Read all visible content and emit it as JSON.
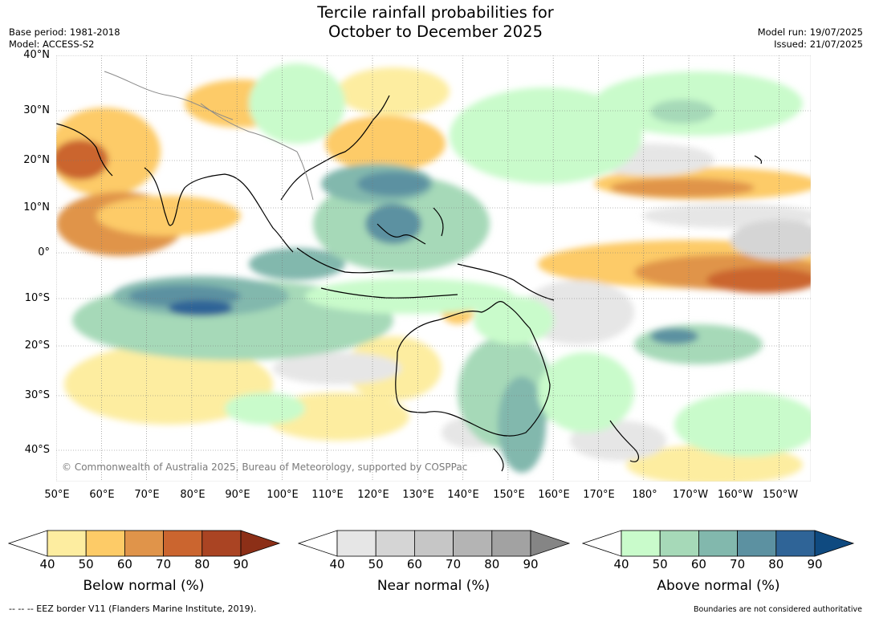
{
  "header": {
    "title_line1": "Tercile rainfall probabilities for",
    "title_line2": "October to December 2025",
    "base_period": "Base period: 1981-2018",
    "model": "Model: ACCESS-S2",
    "model_run": "Model run: 19/07/2025",
    "issued": "Issued: 21/07/2025"
  },
  "map": {
    "lat_labels": [
      "40°N",
      "30°N",
      "20°N",
      "10°N",
      "0°",
      "10°S",
      "20°S",
      "30°S",
      "40°S"
    ],
    "lon_labels": [
      "50°E",
      "60°E",
      "70°E",
      "80°E",
      "90°E",
      "100°E",
      "110°E",
      "120°E",
      "130°E",
      "140°E",
      "150°E",
      "160°E",
      "170°E",
      "180°",
      "170°W",
      "160°W",
      "150°W"
    ],
    "copyright": "© Commonwealth of Australia 2025, Bureau of Meteorology, supported by COSPPac",
    "region": "Indo-Pacific"
  },
  "legends": [
    {
      "title": "Below normal (%)",
      "ticks": [
        "40",
        "50",
        "60",
        "70",
        "80",
        "90"
      ],
      "colors": [
        "#fdeda0",
        "#fdcb67",
        "#e0944a",
        "#cb652f",
        "#aa4423",
        "#8c2f17"
      ]
    },
    {
      "title": "Near normal (%)",
      "ticks": [
        "40",
        "50",
        "60",
        "70",
        "80",
        "90"
      ],
      "colors": [
        "#e6e6e6",
        "#d5d5d5",
        "#c6c6c6",
        "#b4b4b4",
        "#a2a2a2",
        "#858585"
      ]
    },
    {
      "title": "Above normal (%)",
      "ticks": [
        "40",
        "50",
        "60",
        "70",
        "80",
        "90"
      ],
      "colors": [
        "#c9fbcb",
        "#a6d9b8",
        "#82b8ad",
        "#5c91a1",
        "#2f6497",
        "#0f4a80"
      ]
    }
  ],
  "footer": {
    "eez_note": "--  --  -- EEZ border V11 (Flanders Marine Institute, 2019).",
    "disclaimer": "Boundaries are not considered authoritative"
  }
}
